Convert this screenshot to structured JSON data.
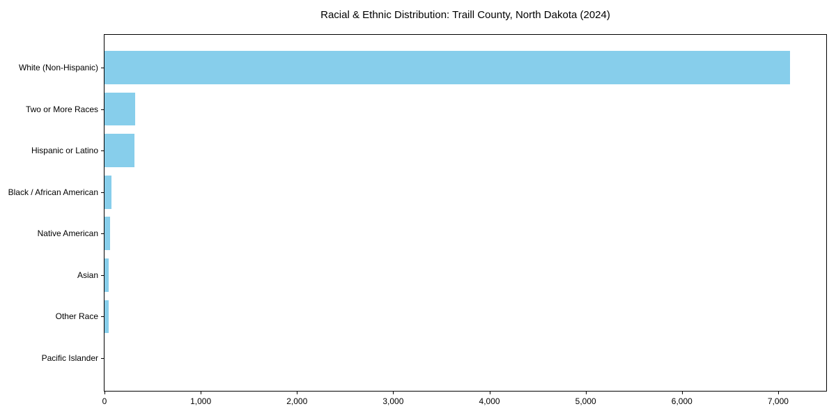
{
  "chart_data": {
    "type": "bar",
    "orientation": "horizontal",
    "title": "Racial & Ethnic Distribution: Traill County, North Dakota (2024)",
    "categories": [
      "White (Non-Hispanic)",
      "Two or More Races",
      "Hispanic or Latino",
      "Black / African American",
      "Native American",
      "Asian",
      "Other Race",
      "Pacific Islander"
    ],
    "values": [
      7120,
      315,
      310,
      70,
      58,
      45,
      40,
      0
    ],
    "xlabel": "",
    "ylabel": "",
    "xlim": [
      0,
      7500
    ],
    "xticks": {
      "values": [
        0,
        1000,
        2000,
        3000,
        4000,
        5000,
        6000,
        7000
      ],
      "labels": [
        "0",
        "1,000",
        "2,000",
        "3,000",
        "4,000",
        "5,000",
        "6,000",
        "7,000"
      ]
    },
    "bar_color": "#87CEEB",
    "grid": false,
    "legend": "none"
  }
}
